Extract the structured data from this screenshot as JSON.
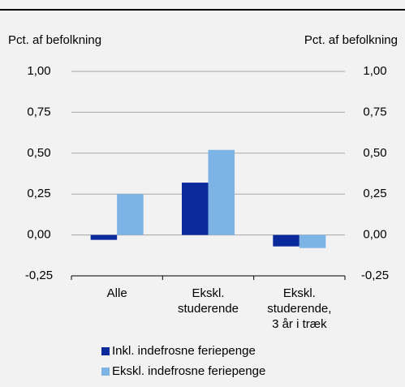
{
  "chart_data": {
    "type": "bar",
    "y_label": "Pct. af befolkning",
    "y2_label": "Pct. af befolkning",
    "categories": [
      [
        "Alle"
      ],
      [
        "Ekskl.",
        "studerende"
      ],
      [
        "Ekskl.",
        "studerende,",
        "3 år i træk"
      ]
    ],
    "series": [
      {
        "name": "Inkl. indefrosne feriepenge",
        "color": "#0a2a9c",
        "values": [
          -0.03,
          0.32,
          -0.07
        ]
      },
      {
        "name": "Ekskl. indefrosne feriepenge",
        "color": "#7cb4e6",
        "values": [
          0.25,
          0.52,
          -0.08
        ]
      }
    ],
    "ylim": [
      -0.25,
      1.0
    ],
    "yticks": [
      {
        "value": -0.25,
        "label": "-0,25"
      },
      {
        "value": 0,
        "label": "0,00"
      },
      {
        "value": 0.25,
        "label": "0,25"
      },
      {
        "value": 0.5,
        "label": "0,50"
      },
      {
        "value": 0.75,
        "label": "0,75"
      },
      {
        "value": 1.0,
        "label": "1,00"
      }
    ],
    "y2lim": [
      -0.25,
      1.0
    ],
    "y2ticks": [
      {
        "value": -0.25,
        "label": "-0,25"
      },
      {
        "value": 0,
        "label": "0,00"
      },
      {
        "value": 0.25,
        "label": "0,25"
      },
      {
        "value": 0.5,
        "label": "0,50"
      },
      {
        "value": 0.75,
        "label": "0,75"
      },
      {
        "value": 1.0,
        "label": "1,00"
      }
    ],
    "grid": true
  }
}
